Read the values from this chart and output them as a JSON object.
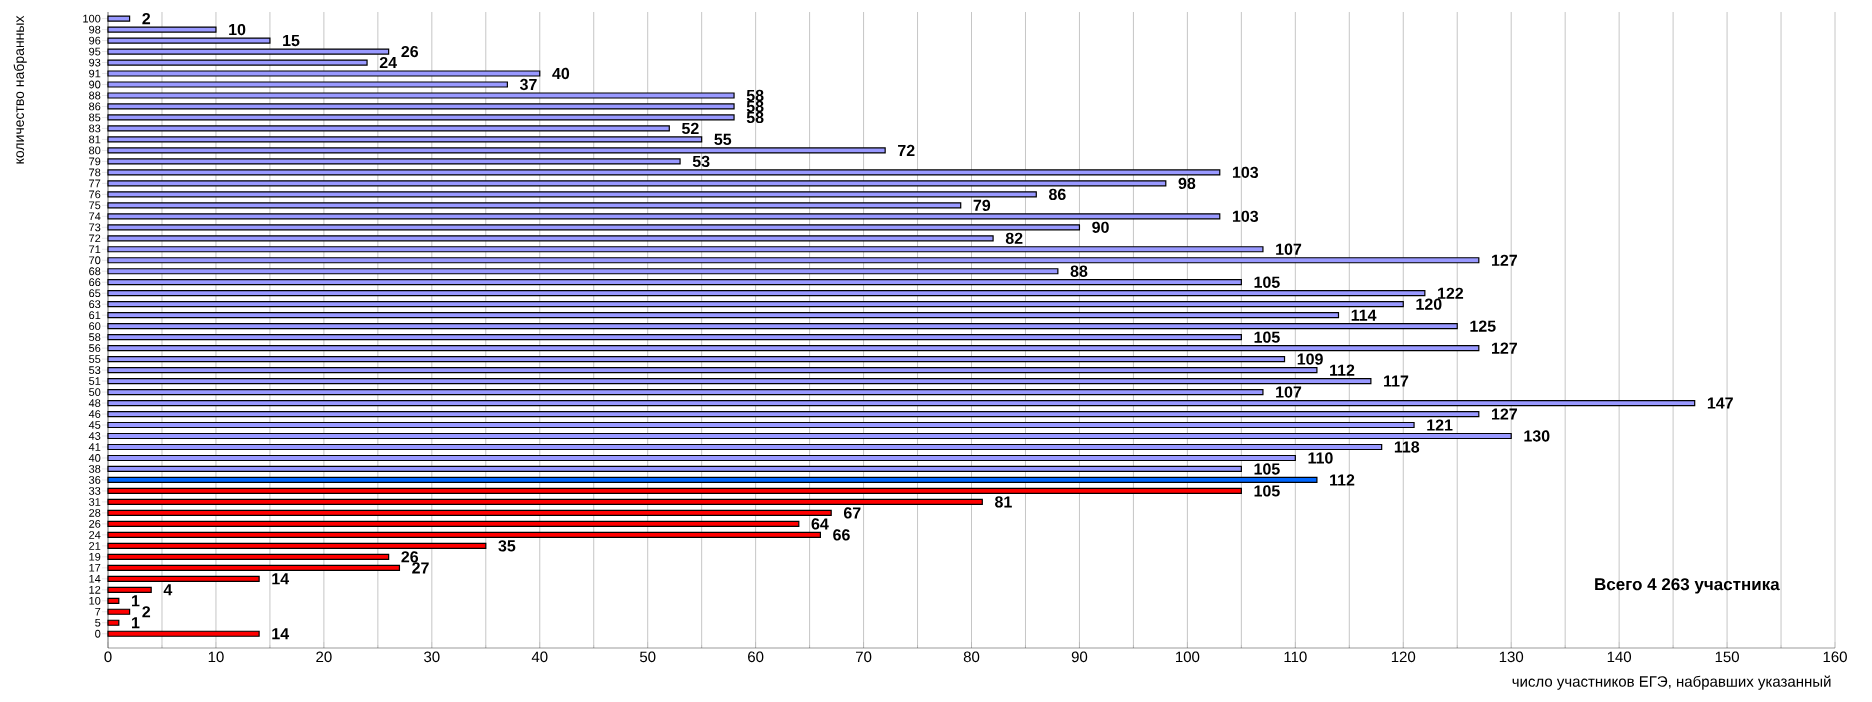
{
  "chart_data": {
    "type": "bar",
    "orientation": "horizontal",
    "ylabel": "количество набранных",
    "xlabel": "число участников ЕГЭ, набравших указанный",
    "annotations": [
      "Всего 4 263 участника"
    ],
    "categories": [
      "100",
      "98",
      "96",
      "95",
      "93",
      "91",
      "90",
      "88",
      "86",
      "85",
      "83",
      "81",
      "80",
      "79",
      "78",
      "77",
      "76",
      "75",
      "74",
      "73",
      "72",
      "71",
      "70",
      "68",
      "66",
      "65",
      "63",
      "61",
      "60",
      "58",
      "56",
      "55",
      "53",
      "51",
      "50",
      "48",
      "46",
      "45",
      "43",
      "41",
      "40",
      "38",
      "36",
      "33",
      "31",
      "28",
      "26",
      "24",
      "21",
      "19",
      "17",
      "14",
      "12",
      "10",
      "7",
      "5",
      "0"
    ],
    "values": [
      2,
      10,
      15,
      26,
      24,
      40,
      37,
      58,
      58,
      58,
      52,
      55,
      72,
      53,
      103,
      98,
      86,
      79,
      103,
      90,
      82,
      107,
      127,
      88,
      105,
      122,
      120,
      114,
      125,
      105,
      127,
      109,
      112,
      117,
      107,
      147,
      127,
      121,
      130,
      118,
      110,
      105,
      112,
      105,
      81,
      67,
      64,
      66,
      35,
      26,
      27,
      14,
      4,
      1,
      2,
      1,
      14
    ],
    "colors": [
      "#9999ff",
      "#9999ff",
      "#9999ff",
      "#9999ff",
      "#9999ff",
      "#9999ff",
      "#9999ff",
      "#9999ff",
      "#9999ff",
      "#9999ff",
      "#9999ff",
      "#9999ff",
      "#9999ff",
      "#9999ff",
      "#9999ff",
      "#9999ff",
      "#9999ff",
      "#9999ff",
      "#9999ff",
      "#9999ff",
      "#9999ff",
      "#9999ff",
      "#9999ff",
      "#9999ff",
      "#9999ff",
      "#9999ff",
      "#9999ff",
      "#9999ff",
      "#9999ff",
      "#9999ff",
      "#9999ff",
      "#9999ff",
      "#9999ff",
      "#9999ff",
      "#9999ff",
      "#9999ff",
      "#9999ff",
      "#9999ff",
      "#9999ff",
      "#9999ff",
      "#9999ff",
      "#9999ff",
      "#0066ff",
      "#ff0000",
      "#ff0000",
      "#ff0000",
      "#ff0000",
      "#ff0000",
      "#ff0000",
      "#ff0000",
      "#ff0000",
      "#ff0000",
      "#ff0000",
      "#ff0000",
      "#ff0000",
      "#ff0000",
      "#ff0000"
    ],
    "xlim": [
      0,
      160
    ],
    "xticks": [
      0,
      10,
      20,
      30,
      40,
      50,
      60,
      70,
      80,
      90,
      100,
      110,
      120,
      130,
      140,
      150,
      160
    ],
    "grid": "x",
    "data_labels": true
  }
}
